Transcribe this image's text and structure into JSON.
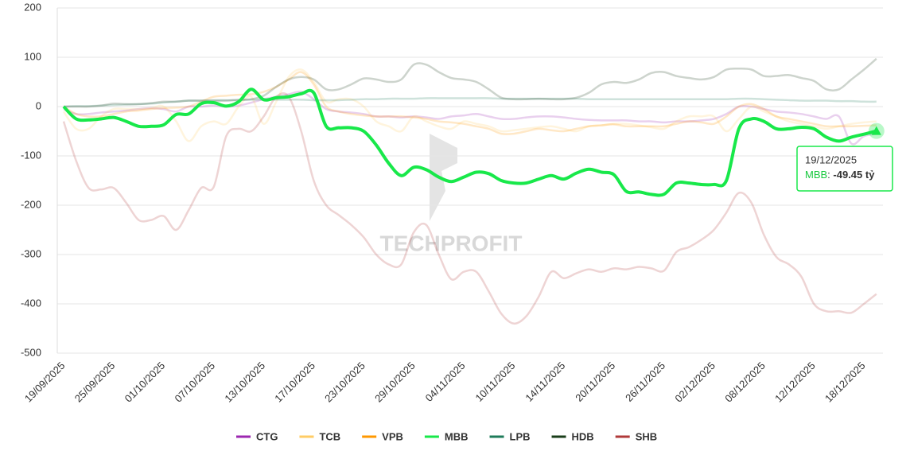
{
  "chart_data": {
    "type": "line",
    "categories": [
      "19/09/2025",
      null,
      null,
      null,
      "25/09/2025",
      null,
      null,
      null,
      "01/10/2025",
      null,
      null,
      null,
      "07/10/2025",
      null,
      null,
      null,
      "13/10/2025",
      null,
      null,
      null,
      "17/10/2025",
      null,
      null,
      null,
      "23/10/2025",
      null,
      null,
      null,
      "29/10/2025",
      null,
      null,
      null,
      "04/11/2025",
      null,
      null,
      null,
      "10/11/2025",
      null,
      null,
      null,
      "14/11/2025",
      null,
      null,
      null,
      "20/11/2025",
      null,
      null,
      null,
      "26/11/2025",
      null,
      null,
      null,
      "02/12/2025",
      null,
      null,
      null,
      "08/12/2025",
      null,
      null,
      null,
      "12/12/2025",
      null,
      null,
      null,
      "18/12/2025",
      null
    ],
    "ylim": [
      -500,
      200
    ],
    "yticks": [
      -500,
      -400,
      -300,
      -200,
      -100,
      0,
      100,
      200
    ],
    "grid": true,
    "highlighted": "MBB",
    "watermark": "TECHPROFIT",
    "tooltip_date": "19/12/2025",
    "value_unit": "tỷ",
    "series": [
      {
        "name": "CTG",
        "color": "#9c27b0",
        "values": [
          -5,
          -15,
          -15,
          -12,
          -10,
          -8,
          -5,
          -3,
          -5,
          -10,
          0,
          0,
          2,
          0,
          2,
          8,
          15,
          20,
          25,
          30,
          15,
          -5,
          -10,
          -12,
          -15,
          -20,
          -20,
          -22,
          -20,
          -22,
          -25,
          -20,
          -18,
          -15,
          -20,
          -25,
          -25,
          -22,
          -20,
          -20,
          -22,
          -25,
          -27,
          -28,
          -28,
          -28,
          -30,
          -30,
          -32,
          -30,
          -30,
          -28,
          -25,
          -15,
          0,
          0,
          -5,
          -10,
          -12,
          -15,
          -20,
          -25,
          -20,
          -75,
          -60,
          -55
        ]
      },
      {
        "name": "TCB",
        "color": "#ffcc66",
        "values": [
          -10,
          -45,
          -45,
          -20,
          -5,
          -5,
          -5,
          -3,
          0,
          -30,
          -70,
          -40,
          -30,
          -35,
          0,
          20,
          -35,
          10,
          60,
          75,
          50,
          10,
          15,
          15,
          0,
          -30,
          -40,
          -50,
          -20,
          -30,
          -40,
          -45,
          -30,
          -35,
          -40,
          -50,
          -48,
          -45,
          -42,
          -40,
          -45,
          -50,
          -40,
          -38,
          -35,
          -35,
          -38,
          -42,
          -45,
          -30,
          -20,
          -20,
          -20,
          -50,
          -25,
          0,
          -10,
          -20,
          -30,
          -35,
          -40,
          -45,
          -40,
          -35,
          -32,
          -30
        ]
      },
      {
        "name": "VPB",
        "color": "#ff9800",
        "values": [
          0,
          -15,
          -20,
          -20,
          -15,
          -10,
          -8,
          -5,
          -3,
          -2,
          0,
          10,
          20,
          22,
          24,
          25,
          30,
          40,
          55,
          70,
          45,
          0,
          -10,
          -15,
          -18,
          -20,
          -20,
          -20,
          -22,
          -25,
          -30,
          -32,
          -35,
          -40,
          -45,
          -55,
          -55,
          -50,
          -45,
          -48,
          -50,
          -45,
          -40,
          -38,
          -36,
          -40,
          -40,
          -40,
          -40,
          -35,
          -30,
          -32,
          -35,
          -20,
          0,
          5,
          -5,
          -20,
          -25,
          -30,
          -35,
          -40,
          -40,
          -40,
          -39,
          -38
        ]
      },
      {
        "name": "MBB",
        "color": "#18e84a",
        "values": [
          0,
          -25,
          -27,
          -25,
          -22,
          -30,
          -40,
          -40,
          -37,
          -16,
          -15,
          6,
          8,
          1,
          10,
          35,
          14,
          18,
          20,
          26,
          28,
          -40,
          -43,
          -43,
          -50,
          -78,
          -115,
          -140,
          -123,
          -128,
          -143,
          -152,
          -143,
          -133,
          -136,
          -150,
          -155,
          -155,
          -147,
          -140,
          -147,
          -135,
          -127,
          -133,
          -138,
          -172,
          -173,
          -178,
          -178,
          -155,
          -155,
          -158,
          -158,
          -150,
          -45,
          -25,
          -30,
          -45,
          -45,
          -42,
          -45,
          -62,
          -70,
          -62,
          -56,
          -49.45
        ]
      },
      {
        "name": "LPB",
        "color": "#1e7b5a",
        "values": [
          0,
          1,
          1,
          2,
          3,
          4,
          5,
          6,
          8,
          10,
          12,
          12,
          13,
          13,
          13,
          14,
          14,
          14,
          14,
          14,
          13,
          13,
          13,
          14,
          15,
          15,
          16,
          16,
          16,
          17,
          17,
          17,
          17,
          17,
          17,
          16,
          16,
          16,
          16,
          16,
          16,
          16,
          15,
          15,
          15,
          15,
          15,
          15,
          15,
          15,
          15,
          15,
          15,
          15,
          16,
          16,
          15,
          14,
          13,
          12,
          12,
          12,
          11,
          11,
          10,
          10
        ]
      },
      {
        "name": "HDB",
        "color": "#1a3d1a",
        "values": [
          0,
          0,
          0,
          2,
          6,
          5,
          5,
          7,
          10,
          10,
          12,
          12,
          12,
          12,
          14,
          15,
          22,
          40,
          55,
          60,
          55,
          35,
          35,
          45,
          57,
          55,
          50,
          55,
          85,
          85,
          70,
          58,
          55,
          50,
          35,
          18,
          15,
          15,
          16,
          15,
          15,
          18,
          28,
          45,
          50,
          48,
          55,
          68,
          70,
          62,
          58,
          55,
          60,
          75,
          77,
          75,
          62,
          62,
          64,
          58,
          52,
          35,
          35,
          55,
          75,
          97
        ]
      },
      {
        "name": "SHB",
        "color": "#b03a3a",
        "values": [
          -30,
          -110,
          -165,
          -168,
          -165,
          -195,
          -230,
          -230,
          -222,
          -250,
          -210,
          -165,
          -163,
          -60,
          -45,
          -50,
          -20,
          20,
          20,
          -50,
          -150,
          -200,
          -220,
          -240,
          -265,
          -300,
          -320,
          -320,
          -255,
          -240,
          -300,
          -350,
          -335,
          -335,
          -375,
          -420,
          -440,
          -425,
          -385,
          -335,
          -348,
          -338,
          -330,
          -335,
          -328,
          -330,
          -325,
          -328,
          -333,
          -295,
          -285,
          -270,
          -250,
          -215,
          -175,
          -195,
          -260,
          -305,
          -320,
          -345,
          -400,
          -415,
          -415,
          -418,
          -400,
          -380
        ]
      }
    ]
  }
}
